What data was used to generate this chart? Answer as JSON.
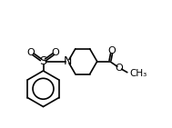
{
  "bg_color": "#ffffff",
  "line_color": "#000000",
  "figsize": [
    1.89,
    1.41
  ],
  "dpi": 100,
  "lw": 1.2,
  "xlim": [
    0,
    10
  ],
  "ylim": [
    0,
    7.5
  ]
}
